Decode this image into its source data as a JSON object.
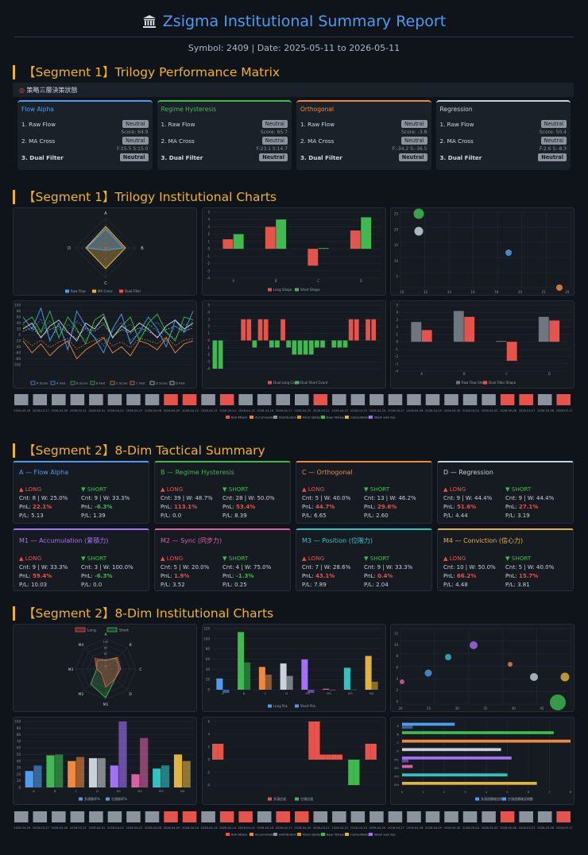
{
  "header": {
    "title": "Zsigma Institutional Summary Report",
    "subtitle": "Symbol: 2409 | Date: 2025-05-11 to 2026-05-11"
  },
  "seg1": {
    "title": "【Segment 1】Trilogy Performance Matrix",
    "matrix_label": "策略三層決策狀態",
    "cards": [
      {
        "title": "Flow Alpha",
        "color": "#4d9cf0",
        "r1": "1. Raw Flow",
        "b1": "Neutral",
        "n1": "Score: 64.9",
        "r2": "2. MA Cross",
        "b2": "Neutral",
        "n2": "F:15.5 S:15.0",
        "r3": "3. Dual Filter",
        "b3": "Neutral"
      },
      {
        "title": "Regime Hysteresis",
        "color": "#3fb950",
        "r1": "1. Raw Flow",
        "b1": "Neutral",
        "n1": "Score: 65.7",
        "r2": "2. MA Cross",
        "b2": "Neutral",
        "n2": "F:23.1 S:14.7",
        "r3": "3. Dual Filter",
        "b3": "Neutral"
      },
      {
        "title": "Orthogonal",
        "color": "#f0883e",
        "r1": "1. Raw Flow",
        "b1": "Neutral",
        "n1": "Score: -3.8",
        "r2": "2. MA Cross",
        "b2": "Neutral",
        "n2": "F:-34.2 S:-36.5",
        "r3": "3. Dual Filter",
        "b3": "Neutral"
      },
      {
        "title": "Regression",
        "color": "#c9d1d9",
        "r1": "1. Raw Flow",
        "b1": "Neutral",
        "n1": "Score: 50.4",
        "r2": "2. MA Cross",
        "b2": "Neutral",
        "n2": "F:2.6 S:-8.3",
        "r3": "3. Dual Filter",
        "b3": "Neutral"
      }
    ],
    "charts_title": "【Segment 1】Trilogy Institutional Charts"
  },
  "seg1_charts": {
    "radar": {
      "labels": [
        "A",
        "B",
        "C",
        "D"
      ],
      "legend": [
        "Raw Flow",
        "MA Cross",
        "Dual Filter"
      ]
    },
    "bar_shape": {
      "legend": [
        "Long Shape",
        "Short Shape"
      ],
      "yticks": [
        "5",
        "4",
        "3",
        "2",
        "1",
        "0",
        "-1",
        "-2",
        "-3",
        "-4"
      ],
      "cats": [
        "A",
        "B",
        "C",
        "D"
      ]
    },
    "bubble": {
      "yticks": [
        "25",
        "20",
        "15",
        "10",
        "5"
      ],
      "xticks": [
        "10",
        "12",
        "14",
        "16",
        "18",
        "20",
        "22",
        "24"
      ]
    },
    "lines": {
      "legend": [
        "A Score",
        "A Fast",
        "B Score",
        "B Fast",
        "C Score",
        "C Fast",
        "D Score",
        "D Fast"
      ],
      "yticks": [
        "100",
        "80",
        "60",
        "40",
        "20",
        "0",
        "-20",
        "-40",
        "-60",
        "-80",
        "-100"
      ]
    },
    "dual_count": {
      "legend": [
        "Dual Long Count",
        "Dual Short Count"
      ],
      "yticks": [
        "5",
        "4",
        "3",
        "2",
        "1",
        "0",
        "-1",
        "-2",
        "-3",
        "-4"
      ]
    },
    "raw_dual": {
      "legend": [
        "Raw Flow Shape",
        "Dual Filter Shape"
      ],
      "yticks": [
        "5",
        "4",
        "3",
        "2",
        "1",
        "0",
        "-1",
        "-2",
        "-3",
        "-4"
      ],
      "cats": [
        "A",
        "B",
        "C",
        "D"
      ]
    },
    "heat_legend": [
      "Bull Attack",
      "Accumulation",
      "Distribution",
      "Panic Bottom",
      "Bear Whale",
      "Consolidation",
      "Wash and rise"
    ]
  },
  "seg2": {
    "title": "【Segment 2】8-Dim Tactical Summary",
    "cards": [
      {
        "title": "A — Flow Alpha",
        "color": "#4d9cf0",
        "l1": "Cnt: 8 | W: 25.0%",
        "l2": "PnL: ",
        "lp": "22.1%",
        "lpc": "neg",
        "l3": "P/L: 5.13",
        "s1": "Cnt: 9 | W: 33.3%",
        "s2": "PnL: ",
        "sp": "-6.3%",
        "spc": "pos",
        "s3": "P/L: 1.39"
      },
      {
        "title": "B — Regime Hysteresis",
        "color": "#3fb950",
        "l1": "Cnt: 39 | W: 48.7%",
        "l2": "PnL: ",
        "lp": "113.1%",
        "lpc": "neg",
        "l3": "P/L: 0.0",
        "s1": "Cnt: 28 | W: 50.0%",
        "s2": "PnL: ",
        "sp": "53.4%",
        "spc": "neg",
        "s3": "P/L: 8.39"
      },
      {
        "title": "C — Orthogonal",
        "color": "#f0883e",
        "l1": "Cnt: 5 | W: 40.0%",
        "l2": "PnL: ",
        "lp": "44.7%",
        "lpc": "neg",
        "l3": "P/L: 6.65",
        "s1": "Cnt: 13 | W: 46.2%",
        "s2": "PnL: ",
        "sp": "29.6%",
        "spc": "neg",
        "s3": "P/L: 2.60"
      },
      {
        "title": "D — Regression",
        "color": "#c9d1d9",
        "l1": "Cnt: 9 | W: 44.4%",
        "l2": "PnL: ",
        "lp": "51.6%",
        "lpc": "neg",
        "l3": "P/L: 4.44",
        "s1": "Cnt: 9 | W: 44.4%",
        "s2": "PnL: ",
        "sp": "27.1%",
        "spc": "neg",
        "s3": "P/L: 3.19"
      },
      {
        "title": "M1 — Accumulation (累積力)",
        "color": "#a371f7",
        "l1": "Cnt: 9 | W: 33.3%",
        "l2": "PnL: ",
        "lp": "59.4%",
        "lpc": "neg",
        "l3": "P/L: 10.03",
        "s1": "Cnt: 3 | W: 100.0%",
        "s2": "PnL: ",
        "sp": "-6.3%",
        "spc": "pos",
        "s3": "P/L: 0.0"
      },
      {
        "title": "M2 — Sync (同步力)",
        "color": "#db61a2",
        "l1": "Cnt: 5 | W: 20.0%",
        "l2": "PnL: ",
        "lp": "1.9%",
        "lpc": "neg",
        "l3": "P/L: 3.52",
        "s1": "Cnt: 4 | W: 75.0%",
        "s2": "PnL: ",
        "sp": "-1.3%",
        "spc": "pos",
        "s3": "P/L: 0.25"
      },
      {
        "title": "M3 — Position (位階力)",
        "color": "#2ec4c4",
        "l1": "Cnt: 7 | W: 28.6%",
        "l2": "PnL: ",
        "lp": "43.1%",
        "lpc": "neg",
        "l3": "P/L: 7.89",
        "s1": "Cnt: 9 | W: 33.3%",
        "s2": "PnL: ",
        "sp": "0.4%",
        "spc": "neg",
        "s3": "P/L: 2.04"
      },
      {
        "title": "M4 — Conviction (信心力)",
        "color": "#e3b341",
        "l1": "Cnt: 10 | W: 50.0%",
        "l2": "PnL: ",
        "lp": "66.2%",
        "lpc": "neg",
        "l3": "P/L: 4.48",
        "s1": "Cnt: 5 | W: 40.0%",
        "s2": "PnL: ",
        "sp": "15.7%",
        "spc": "neg",
        "s3": "P/L: 3.81"
      }
    ],
    "long_label": "▲ LONG",
    "short_label": "▼ SHORT",
    "charts_title": "【Segment 2】8-Dim Institutional Charts"
  },
  "seg2_charts": {
    "radar": {
      "legend": [
        "Long",
        "Short"
      ],
      "labels": [
        "A",
        "B",
        "C",
        "D",
        "M1",
        "M2",
        "M3",
        "M4"
      ],
      "ticks": [
        "100",
        "80",
        "60",
        "40",
        "20"
      ]
    },
    "pnl": {
      "legend": [
        "Long PnL",
        "Short PnL"
      ],
      "yticks": [
        "120",
        "100",
        "80",
        "60",
        "40",
        "20",
        "0"
      ],
      "cats": [
        "A",
        "B",
        "C",
        "D",
        "M1",
        "M2",
        "M3",
        "M4"
      ]
    },
    "bubble": {
      "yticks": [
        "12",
        "10",
        "8",
        "6",
        "4",
        "2",
        "0"
      ],
      "xticks": [
        "20",
        "25",
        "30",
        "35",
        "40",
        "45"
      ]
    },
    "winrate": {
      "legend": [
        "多頭勝率%",
        "空頭勝率%"
      ],
      "yticks": [
        "100",
        "90",
        "80",
        "70",
        "60",
        "50",
        "40",
        "30",
        "20",
        "10",
        "0"
      ],
      "cats": [
        "A",
        "B",
        "C",
        "D",
        "M1",
        "M2",
        "M3",
        "M4"
      ]
    },
    "signals": {
      "legend": [
        "多頭信號",
        "空頭信號"
      ],
      "yticks": [
        "6",
        "4",
        "2",
        "0",
        "-2",
        "-4"
      ]
    },
    "hbar": {
      "legend": [
        "多頭連續確認期數",
        "空頭連續確認期數"
      ],
      "cats": [
        "A",
        "B",
        "C",
        "D",
        "M1",
        "M2",
        "M3",
        "M4"
      ],
      "xticks": [
        "0",
        "1",
        "2",
        "3",
        "4",
        "5",
        "6",
        "7",
        "8"
      ]
    },
    "heat_legend": [
      "Bull Attack",
      "Accumulation",
      "Distribution",
      "Panic Bottom",
      "Bear Whale",
      "Consolidation",
      "Wash and rise"
    ]
  },
  "heat_dates1": [
    "2026-03-26",
    "2026-03-27",
    "2026-03-30",
    "2026-03-31",
    "2026-04-01",
    "2026-04-02",
    "2026-04-07",
    "2026-04-08",
    "2026-04-09",
    "2026-04-10",
    "2026-04-13",
    "2026-04-14",
    "2026-04-15",
    "2026-04-16",
    "2026-04-17",
    "2026-04-20",
    "2026-04-21",
    "2026-04-22",
    "2026-04-23",
    "2026-04-24",
    "2026-04-27",
    "2026-04-28",
    "2026-04-29",
    "2026-04-30",
    "2026-05-04",
    "2026-05-05",
    "2026-05-06",
    "2026-05-07",
    "2026-05-08",
    "2026-05-11"
  ],
  "heat_colors1": [
    "#8b949e",
    "#8b949e",
    "#8b949e",
    "#8b949e",
    "#8b949e",
    "#8b949e",
    "#8b949e",
    "#8b949e",
    "#e5534b",
    "#e5534b",
    "#8b949e",
    "#e5534b",
    "#8b949e",
    "#8b949e",
    "#8b949e",
    "#8b949e",
    "#e5534b",
    "#8b949e",
    "#8b949e",
    "#8b949e",
    "#8b949e",
    "#8b949e",
    "#8b949e",
    "#8b949e",
    "#8b949e",
    "#8b949e",
    "#e5534b",
    "#e5534b",
    "#8b949e",
    "#e5534b"
  ],
  "heat_colors2": [
    "#8b949e",
    "#8b949e",
    "#8b949e",
    "#8b949e",
    "#8b949e",
    "#8b949e",
    "#8b949e",
    "#8b949e",
    "#e5534b",
    "#e5534b",
    "#8b949e",
    "#e5534b",
    "#e5534b",
    "#8b949e",
    "#e5534b",
    "#e5534b",
    "#8b949e",
    "#8b949e",
    "#8b949e",
    "#8b949e",
    "#8b949e",
    "#8b949e",
    "#8b949e",
    "#8b949e",
    "#8b949e",
    "#8b949e",
    "#e5534b",
    "#8b949e",
    "#8b949e",
    "#e5534b"
  ],
  "legend_colors": [
    "#e5534b",
    "#f0883e",
    "#8b949e",
    "#d29922",
    "#3fb950",
    "#e3b341",
    "#a371f7"
  ]
}
